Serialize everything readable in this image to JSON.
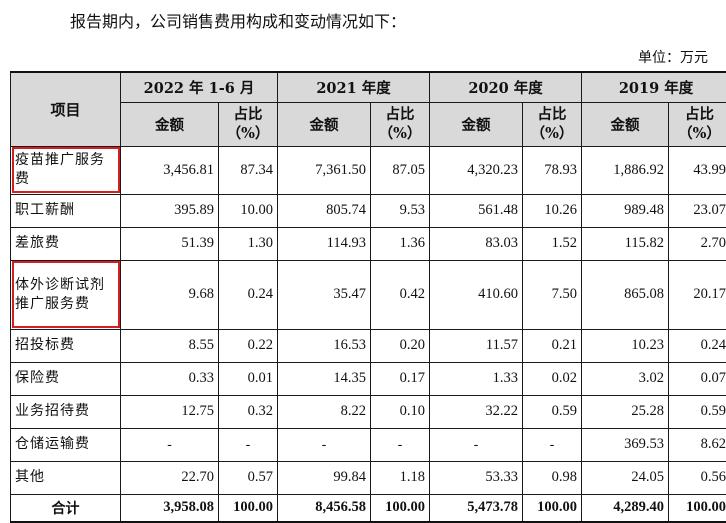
{
  "intro": "报告期内，公司销售费用构成和变动情况如下：",
  "unit": "单位：万元",
  "header": {
    "item": "项目",
    "periods": [
      "2022 年 1-6 月",
      "2021 年度",
      "2020 年度",
      "2019 年度"
    ],
    "amount": "金额",
    "ratio_l1": "占比",
    "ratio_l2": "（%）"
  },
  "rows": [
    {
      "name": "疫苗推广服务费",
      "highlight": true,
      "vals": [
        "3,456.81",
        "87.34",
        "7,361.50",
        "87.05",
        "4,320.23",
        "78.93",
        "1,886.92",
        "43.99"
      ]
    },
    {
      "name": "职工薪酬",
      "vals": [
        "395.89",
        "10.00",
        "805.74",
        "9.53",
        "561.48",
        "10.26",
        "989.48",
        "23.07"
      ]
    },
    {
      "name": "差旅费",
      "vals": [
        "51.39",
        "1.30",
        "114.93",
        "1.36",
        "83.03",
        "1.52",
        "115.82",
        "2.70"
      ]
    },
    {
      "name": "体外诊断试剂推广服务费",
      "highlight": true,
      "vals": [
        "9.68",
        "0.24",
        "35.47",
        "0.42",
        "410.60",
        "7.50",
        "865.08",
        "20.17"
      ]
    },
    {
      "name": "招投标费",
      "vals": [
        "8.55",
        "0.22",
        "16.53",
        "0.20",
        "11.57",
        "0.21",
        "10.23",
        "0.24"
      ]
    },
    {
      "name": "保险费",
      "vals": [
        "0.33",
        "0.01",
        "14.35",
        "0.17",
        "1.33",
        "0.02",
        "3.02",
        "0.07"
      ]
    },
    {
      "name": "业务招待费",
      "vals": [
        "12.75",
        "0.32",
        "8.22",
        "0.10",
        "32.22",
        "0.59",
        "25.28",
        "0.59"
      ]
    },
    {
      "name": "仓储运输费",
      "vals": [
        "-",
        "-",
        "-",
        "-",
        "-",
        "-",
        "369.53",
        "8.62"
      ]
    },
    {
      "name": "其他",
      "vals": [
        "22.70",
        "0.57",
        "99.84",
        "1.18",
        "53.33",
        "0.98",
        "24.05",
        "0.56"
      ]
    },
    {
      "name": "合计",
      "total": true,
      "vals": [
        "3,958.08",
        "100.00",
        "8,456.58",
        "100.00",
        "5,473.78",
        "100.00",
        "4,289.40",
        "100.00"
      ]
    }
  ],
  "colors": {
    "header_bg": "#d9d9d9",
    "highlight": "#d21f1f"
  }
}
